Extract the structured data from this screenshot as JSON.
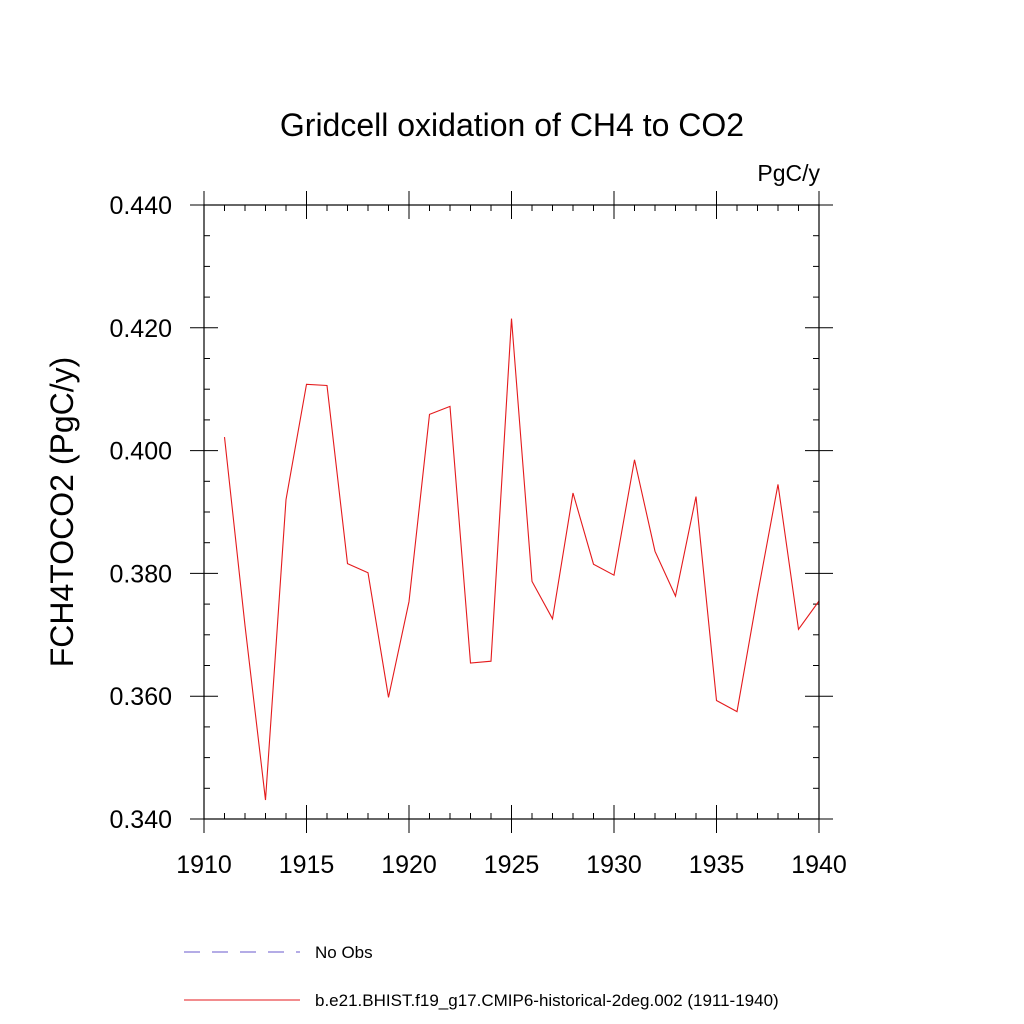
{
  "chart_data": {
    "type": "line",
    "title": "Gridcell oxidation of CH4 to CO2",
    "units": "PgC/y",
    "ylabel": "FCH4TOCO2  (PgC/y)",
    "xlabel": "",
    "xlim": [
      1910,
      1940
    ],
    "ylim": [
      0.34,
      0.44
    ],
    "x_ticks": [
      1910,
      1915,
      1920,
      1925,
      1930,
      1935,
      1940
    ],
    "x_tick_labels": [
      "1910",
      "1915",
      "1920",
      "1925",
      "1930",
      "1935",
      "1940"
    ],
    "y_ticks": [
      0.34,
      0.36,
      0.38,
      0.4,
      0.42,
      0.44
    ],
    "y_tick_labels": [
      "0.340",
      "0.360",
      "0.380",
      "0.400",
      "0.420",
      "0.440"
    ],
    "x_minor_step": 1,
    "y_minor_step": 0.005,
    "grid": false,
    "legend": [
      {
        "name": "No Obs",
        "color": "#6a5acd",
        "dash": true
      },
      {
        "name": "b.e21.BHIST.f19_g17.CMIP6-historical-2deg.002 (1911-1940)",
        "color": "#e41a1c",
        "dash": false
      }
    ],
    "series": [
      {
        "name": "b.e21.BHIST.f19_g17.CMIP6-historical-2deg.002 (1911-1940)",
        "color": "#e41a1c",
        "x": [
          1911,
          1912,
          1913,
          1914,
          1915,
          1916,
          1917,
          1918,
          1919,
          1920,
          1921,
          1922,
          1923,
          1924,
          1925,
          1926,
          1927,
          1928,
          1929,
          1930,
          1931,
          1932,
          1933,
          1934,
          1935,
          1936,
          1937,
          1938,
          1939,
          1940
        ],
        "y": [
          0.4022,
          0.3715,
          0.3431,
          0.392,
          0.4108,
          0.4106,
          0.3816,
          0.3801,
          0.3598,
          0.3754,
          0.4059,
          0.4072,
          0.3654,
          0.3657,
          0.4215,
          0.3787,
          0.3726,
          0.3931,
          0.3815,
          0.3797,
          0.3985,
          0.3836,
          0.3763,
          0.3925,
          0.3593,
          0.3575,
          0.3765,
          0.3945,
          0.3709,
          0.3755
        ]
      }
    ]
  }
}
